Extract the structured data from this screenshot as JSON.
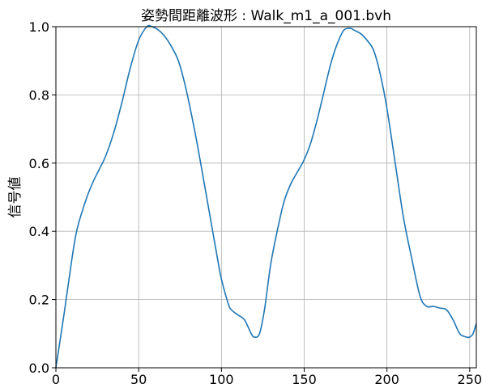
{
  "chart_data": {
    "type": "line",
    "title": "姿勢間距離波形 : Walk_m1_a_001.bvh",
    "xlabel": "",
    "ylabel": "信号値",
    "xlim": [
      0,
      254
    ],
    "ylim": [
      0.0,
      1.0
    ],
    "grid": true,
    "x_ticks": [
      0,
      50,
      100,
      150,
      200,
      250
    ],
    "y_ticks": [
      0.0,
      0.2,
      0.4,
      0.6,
      0.8,
      1.0
    ],
    "x_tick_labels": [
      "0",
      "50",
      "100",
      "150",
      "200",
      "250"
    ],
    "y_tick_labels": [
      "0.0",
      "0.2",
      "0.4",
      "0.6",
      "0.8",
      "1.0"
    ],
    "line_color": "#1f77b4",
    "series": [
      {
        "x": [
          0,
          5,
          10,
          13,
          18,
          22,
          26,
          30,
          35,
          40,
          45,
          50,
          55,
          58,
          62,
          66,
          70,
          74,
          78,
          82,
          86,
          90,
          94,
          98,
          100,
          104,
          106,
          110,
          114,
          118,
          120,
          123,
          126,
          130,
          135,
          138,
          142,
          146,
          150,
          154,
          158,
          162,
          166,
          170,
          174,
          178,
          180,
          184,
          188,
          192,
          196,
          200,
          205,
          210,
          215,
          220,
          224,
          228,
          232,
          236,
          240,
          244,
          248,
          250,
          252,
          254
        ],
        "y": [
          0.0,
          0.16,
          0.33,
          0.41,
          0.49,
          0.54,
          0.58,
          0.62,
          0.69,
          0.78,
          0.88,
          0.96,
          1.0,
          1.0,
          0.99,
          0.97,
          0.94,
          0.9,
          0.83,
          0.74,
          0.64,
          0.53,
          0.42,
          0.31,
          0.26,
          0.19,
          0.17,
          0.155,
          0.14,
          0.1,
          0.09,
          0.1,
          0.17,
          0.31,
          0.43,
          0.49,
          0.54,
          0.575,
          0.61,
          0.66,
          0.73,
          0.81,
          0.89,
          0.95,
          0.99,
          0.995,
          0.99,
          0.98,
          0.96,
          0.93,
          0.86,
          0.76,
          0.6,
          0.44,
          0.32,
          0.21,
          0.18,
          0.18,
          0.175,
          0.17,
          0.14,
          0.1,
          0.09,
          0.09,
          0.1,
          0.13
        ]
      }
    ]
  }
}
